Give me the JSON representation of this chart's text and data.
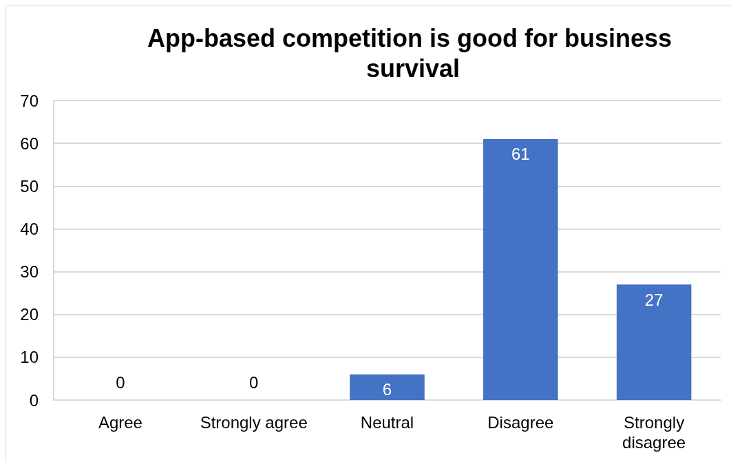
{
  "chart_data": {
    "type": "bar",
    "title": "App-based competition is good for business survival",
    "categories": [
      "Agree",
      "Strongly agree",
      "Neutral",
      "Disagree",
      "Strongly\ndisagree"
    ],
    "values": [
      0,
      0,
      6,
      61,
      27
    ],
    "color": "#4472c4",
    "ylim": [
      0,
      70
    ],
    "yticks": [
      0,
      10,
      20,
      30,
      40,
      50,
      60,
      70
    ],
    "grid": "y",
    "data_labels": true
  }
}
